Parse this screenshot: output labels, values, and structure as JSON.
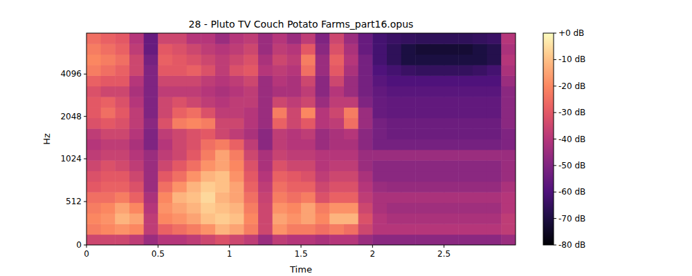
{
  "chart_data": {
    "type": "heatmap",
    "title": "28 - Pluto TV Couch Potato Farms_part16.opus",
    "x_label": "Time",
    "y_label": "Hz",
    "xlim": [
      0,
      3.0
    ],
    "ylim": [
      0,
      8000
    ],
    "log": "y",
    "xticks": [
      0,
      0.5,
      1,
      1.5,
      2,
      2.5
    ],
    "yticks": [
      0,
      512,
      1024,
      2048,
      4096
    ],
    "x_edges": [
      0,
      0.1,
      0.2,
      0.3,
      0.4,
      0.5,
      0.6,
      0.7,
      0.8,
      0.9,
      1.0,
      1.1,
      1.2,
      1.3,
      1.4,
      1.5,
      1.6,
      1.7,
      1.8,
      1.9,
      2.0,
      2.1,
      2.2,
      2.3,
      2.4,
      2.5,
      2.6,
      2.7,
      2.8,
      2.9,
      3.0
    ],
    "y_edges": [
      0,
      125,
      250,
      375,
      500,
      625,
      750,
      875,
      1000,
      1189,
      1414,
      1682,
      2000,
      2378,
      2828,
      3364,
      4000,
      4757,
      5657,
      6727,
      8000
    ],
    "zlim": [
      -80,
      0
    ],
    "zticks": [
      {
        "value": 0,
        "label": "+0 dB"
      },
      {
        "value": -10,
        "label": "-10 dB"
      },
      {
        "value": -20,
        "label": "-20 dB"
      },
      {
        "value": -30,
        "label": "-30 dB"
      },
      {
        "value": -40,
        "label": "-40 dB"
      },
      {
        "value": -50,
        "label": "-50 dB"
      },
      {
        "value": -60,
        "label": "-60 dB"
      },
      {
        "value": -70,
        "label": "-70 dB"
      },
      {
        "value": -80,
        "label": "-80 dB"
      }
    ],
    "cells": [
      [
        -35,
        -35,
        -35,
        -38,
        -45,
        -40,
        -40,
        -38,
        -35,
        -32,
        -35,
        -38,
        -45,
        -38,
        -40,
        -40,
        -42,
        -40,
        -40,
        -45,
        -48,
        -48,
        -48,
        -48,
        -48,
        -48,
        -48,
        -48,
        -48,
        -45
      ],
      [
        -22,
        -20,
        -18,
        -20,
        -38,
        -28,
        -25,
        -22,
        -18,
        -12,
        -15,
        -22,
        -35,
        -18,
        -22,
        -22,
        -25,
        -22,
        -25,
        -35,
        -40,
        -40,
        -40,
        -40,
        -40,
        -40,
        -40,
        -40,
        -40,
        -38
      ],
      [
        -20,
        -18,
        -12,
        -15,
        -38,
        -20,
        -18,
        -15,
        -10,
        -8,
        -10,
        -20,
        -35,
        -15,
        -18,
        -15,
        -20,
        -12,
        -12,
        -32,
        -40,
        -42,
        -42,
        -42,
        -42,
        -42,
        -42,
        -42,
        -42,
        -38
      ],
      [
        -22,
        -20,
        -15,
        -20,
        -40,
        -18,
        -15,
        -12,
        -8,
        -10,
        -12,
        -22,
        -35,
        -18,
        -20,
        -15,
        -22,
        -18,
        -18,
        -35,
        -42,
        -44,
        -44,
        -44,
        -44,
        -44,
        -44,
        -44,
        -44,
        -40
      ],
      [
        -25,
        -25,
        -22,
        -28,
        -42,
        -20,
        -12,
        -10,
        -6,
        -12,
        -15,
        -25,
        -36,
        -22,
        -25,
        -22,
        -32,
        -28,
        -28,
        -38,
        -42,
        -42,
        -42,
        -42,
        -42,
        -42,
        -42,
        -42,
        -42,
        -40
      ],
      [
        -30,
        -28,
        -28,
        -32,
        -45,
        -25,
        -18,
        -12,
        -8,
        -10,
        -15,
        -28,
        -38,
        -25,
        -28,
        -28,
        -35,
        -32,
        -32,
        -40,
        -45,
        -46,
        -46,
        -46,
        -46,
        -46,
        -46,
        -46,
        -46,
        -42
      ],
      [
        -32,
        -30,
        -30,
        -35,
        -45,
        -30,
        -25,
        -18,
        -12,
        -10,
        -18,
        -30,
        -40,
        -28,
        -30,
        -32,
        -38,
        -35,
        -35,
        -42,
        -48,
        -48,
        -48,
        -48,
        -48,
        -48,
        -48,
        -48,
        -48,
        -45
      ],
      [
        -35,
        -32,
        -34,
        -38,
        -45,
        -35,
        -30,
        -25,
        -18,
        -15,
        -20,
        -32,
        -42,
        -32,
        -35,
        -35,
        -40,
        -38,
        -38,
        -45,
        -48,
        -48,
        -48,
        -48,
        -48,
        -48,
        -48,
        -48,
        -48,
        -45
      ],
      [
        -38,
        -36,
        -36,
        -40,
        -45,
        -38,
        -35,
        -30,
        -22,
        -15,
        -22,
        -35,
        -42,
        -36,
        -38,
        -38,
        -40,
        -40,
        -40,
        -45,
        -45,
        -45,
        -45,
        -45,
        -45,
        -45,
        -45,
        -45,
        -45,
        -45
      ],
      [
        -40,
        -38,
        -38,
        -42,
        -50,
        -40,
        -35,
        -32,
        -25,
        -22,
        -28,
        -38,
        -48,
        -38,
        -40,
        -40,
        -45,
        -42,
        -42,
        -48,
        -52,
        -52,
        -52,
        -52,
        -52,
        -52,
        -52,
        -52,
        -52,
        -50
      ],
      [
        -38,
        -35,
        -35,
        -40,
        -50,
        -38,
        -35,
        -32,
        -30,
        -35,
        -38,
        -42,
        -48,
        -38,
        -40,
        -38,
        -45,
        -42,
        -40,
        -48,
        -52,
        -54,
        -54,
        -54,
        -54,
        -54,
        -54,
        -54,
        -54,
        -50
      ],
      [
        -32,
        -30,
        -32,
        -38,
        -48,
        -32,
        -22,
        -20,
        -22,
        -35,
        -35,
        -40,
        -45,
        -28,
        -35,
        -30,
        -40,
        -38,
        -25,
        -45,
        -52,
        -54,
        -54,
        -54,
        -54,
        -54,
        -54,
        -54,
        -54,
        -48
      ],
      [
        -30,
        -25,
        -30,
        -38,
        -50,
        -35,
        -28,
        -25,
        -32,
        -38,
        -38,
        -40,
        -45,
        -22,
        -35,
        -20,
        -40,
        -35,
        -22,
        -45,
        -55,
        -56,
        -56,
        -56,
        -56,
        -56,
        -56,
        -56,
        -56,
        -48
      ],
      [
        -30,
        -28,
        -32,
        -40,
        -50,
        -35,
        -32,
        -35,
        -38,
        -40,
        -38,
        -38,
        -45,
        -35,
        -38,
        -35,
        -45,
        -38,
        -38,
        -50,
        -55,
        -56,
        -56,
        -56,
        -56,
        -56,
        -56,
        -56,
        -56,
        -48
      ],
      [
        -32,
        -35,
        -35,
        -42,
        -50,
        -38,
        -38,
        -38,
        -40,
        -42,
        -40,
        -38,
        -45,
        -42,
        -42,
        -38,
        -48,
        -40,
        -45,
        -52,
        -56,
        -58,
        -58,
        -58,
        -58,
        -58,
        -58,
        -58,
        -58,
        -48
      ],
      [
        -28,
        -30,
        -30,
        -40,
        -50,
        -35,
        -35,
        -35,
        -38,
        -40,
        -38,
        -35,
        -45,
        -40,
        -42,
        -35,
        -48,
        -35,
        -45,
        -52,
        -58,
        -60,
        -60,
        -60,
        -60,
        -60,
        -60,
        -60,
        -60,
        -45
      ],
      [
        -22,
        -25,
        -28,
        -35,
        -50,
        -30,
        -30,
        -28,
        -32,
        -38,
        -32,
        -30,
        -40,
        -38,
        -40,
        -25,
        -45,
        -30,
        -42,
        -52,
        -60,
        -62,
        -64,
        -65,
        -65,
        -65,
        -65,
        -64,
        -62,
        -42
      ],
      [
        -20,
        -22,
        -25,
        -35,
        -52,
        -28,
        -30,
        -32,
        -35,
        -38,
        -35,
        -32,
        -42,
        -35,
        -38,
        -22,
        -45,
        -28,
        -40,
        -52,
        -62,
        -66,
        -70,
        -70,
        -70,
        -70,
        -70,
        -70,
        -68,
        -40
      ],
      [
        -22,
        -25,
        -28,
        -38,
        -55,
        -30,
        -32,
        -35,
        -38,
        -40,
        -38,
        -35,
        -45,
        -38,
        -40,
        -30,
        -48,
        -32,
        -42,
        -55,
        -62,
        -66,
        -70,
        -72,
        -72,
        -72,
        -72,
        -70,
        -68,
        -42
      ],
      [
        -25,
        -28,
        -30,
        -40,
        -55,
        -35,
        -35,
        -40,
        -40,
        -45,
        -40,
        -38,
        -45,
        -40,
        -45,
        -38,
        -50,
        -35,
        -45,
        -55,
        -62,
        -64,
        -65,
        -66,
        -66,
        -66,
        -66,
        -65,
        -64,
        -40
      ]
    ]
  }
}
